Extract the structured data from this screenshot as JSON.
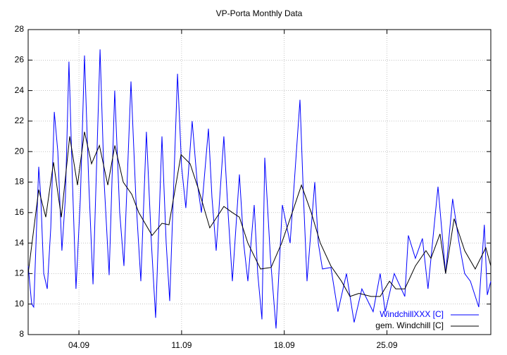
{
  "chart_data": {
    "type": "line",
    "title": "VP-Porta Monthly Data",
    "xlim": [
      0.54,
      32.08
    ],
    "ylim": [
      8,
      28
    ],
    "xticks": [
      {
        "value": 4,
        "label": "04.09"
      },
      {
        "value": 11,
        "label": "11.09"
      },
      {
        "value": 18,
        "label": "18.09"
      },
      {
        "value": 25,
        "label": "25.09"
      }
    ],
    "yticks": [
      8,
      10,
      12,
      14,
      16,
      18,
      20,
      22,
      24,
      26,
      28
    ],
    "grid": true,
    "legend": "bottom-right",
    "series": [
      {
        "name": "WindchillXXX [C]",
        "color": "#0000ff",
        "x": [
          0.54,
          0.78,
          0.92,
          1.26,
          1.4,
          1.6,
          1.84,
          2.08,
          2.32,
          2.56,
          2.84,
          3.08,
          3.32,
          3.56,
          3.8,
          4.1,
          4.38,
          4.67,
          4.96,
          5.2,
          5.44,
          5.72,
          6.06,
          6.44,
          6.78,
          7.07,
          7.55,
          7.88,
          8.22,
          8.6,
          8.94,
          9.23,
          9.66,
          9.95,
          10.19,
          10.72,
          11.0,
          11.29,
          11.72,
          12.06,
          12.35,
          12.83,
          13.07,
          13.36,
          13.88,
          14.17,
          14.46,
          14.94,
          15.23,
          15.52,
          15.95,
          16.19,
          16.48,
          16.67,
          17.06,
          17.44,
          17.87,
          18.4,
          19.07,
          19.31,
          19.55,
          20.08,
          20.32,
          20.6,
          21.18,
          21.66,
          22.24,
          22.76,
          23.29,
          24.06,
          24.54,
          24.88,
          25.5,
          26.22,
          26.46,
          26.94,
          27.42,
          27.8,
          28.48,
          29.0,
          29.48,
          29.92,
          30.3,
          30.69,
          31.26,
          31.64,
          31.84,
          32.08
        ],
        "values": [
          12.5,
          10.0,
          9.8,
          19.0,
          17,
          12,
          11,
          15,
          22.6,
          20,
          13.5,
          17,
          25.9,
          18,
          11,
          17,
          26.3,
          18,
          11.3,
          19,
          26.7,
          18,
          11.9,
          24.0,
          16,
          12.5,
          24.6,
          17,
          11.5,
          21.3,
          14,
          9.1,
          21.0,
          14,
          10.2,
          25.1,
          19,
          16.3,
          22.0,
          18,
          16,
          21.5,
          17,
          13.5,
          21.0,
          16,
          11.5,
          18.5,
          14,
          11.5,
          16.5,
          12,
          9,
          19.6,
          13,
          8.4,
          16.5,
          14,
          23.4,
          17,
          11.5,
          18.0,
          14,
          12.3,
          12.4,
          9.5,
          12,
          8.8,
          11,
          9.5,
          12,
          9.5,
          12,
          10.5,
          14.5,
          13,
          14.3,
          11.0,
          17.7,
          12,
          16.9,
          14,
          12,
          11.5,
          9.8,
          15.2,
          10.6,
          11.5
        ]
      },
      {
        "name": "gem. Windchill [C]",
        "color": "#000000",
        "x": [
          0.54,
          1.26,
          1.74,
          2.27,
          2.8,
          3.37,
          3.9,
          4.38,
          4.86,
          5.4,
          5.97,
          6.45,
          7.02,
          7.6,
          8.08,
          8.99,
          9.66,
          10.14,
          10.96,
          11.58,
          12.16,
          12.92,
          13.88,
          14.46,
          14.94,
          15.52,
          16.38,
          17.1,
          17.82,
          18.54,
          19.17,
          19.84,
          20.46,
          21.18,
          21.9,
          22.48,
          23.1,
          23.92,
          24.54,
          25.17,
          25.6,
          26.22,
          26.94,
          27.66,
          28.0,
          28.62,
          29.0,
          29.58,
          30.3,
          31.02,
          31.74,
          32.08
        ],
        "values": [
          12.0,
          17.5,
          15.7,
          19.3,
          15.7,
          21.0,
          17.8,
          21.3,
          19.2,
          20.4,
          17.8,
          20.4,
          18.0,
          17.2,
          16.0,
          14.5,
          15.3,
          15.2,
          19.8,
          19.2,
          17.5,
          15.0,
          16.4,
          16.0,
          15.7,
          14.0,
          12.3,
          12.4,
          14.0,
          16.0,
          17.8,
          16.0,
          14.0,
          12.5,
          11.5,
          10.5,
          10.7,
          10.5,
          10.5,
          11.5,
          11.0,
          11.0,
          12.5,
          13.5,
          13.0,
          14.6,
          12.0,
          15.6,
          13.5,
          12.3,
          13.7,
          12.5
        ]
      }
    ]
  }
}
